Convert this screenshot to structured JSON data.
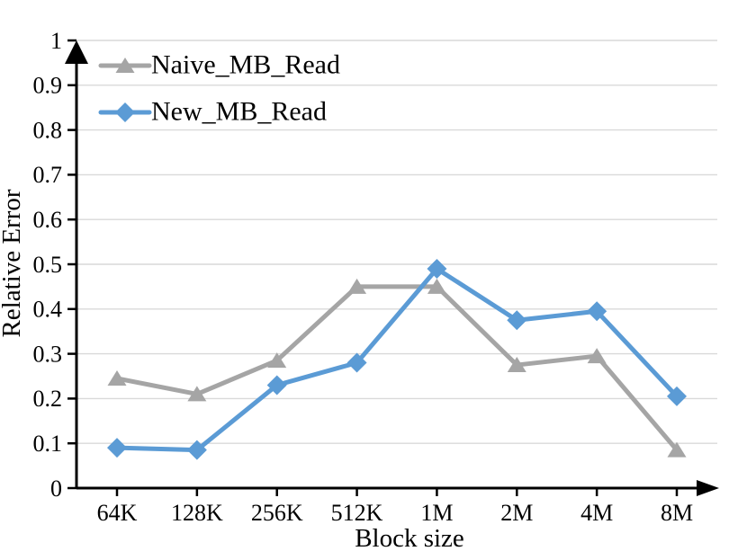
{
  "chart_data": {
    "type": "line",
    "title": "",
    "xlabel": "Block size",
    "ylabel": "Relative Error",
    "categories": [
      "64K",
      "128K",
      "256K",
      "512K",
      "1M",
      "2M",
      "4M",
      "8M"
    ],
    "series": [
      {
        "name": "Naive_MB_Read",
        "color": "#A5A5A5",
        "marker": "triangle",
        "values": [
          0.245,
          0.21,
          0.285,
          0.45,
          0.45,
          0.275,
          0.295,
          0.085
        ]
      },
      {
        "name": "New_MB_Read",
        "color": "#5B9BD5",
        "marker": "diamond",
        "values": [
          0.09,
          0.085,
          0.23,
          0.28,
          0.49,
          0.375,
          0.395,
          0.205
        ]
      }
    ],
    "ylim": [
      0,
      1
    ],
    "ytick_step": 0.1,
    "y_tick_labels": [
      "0",
      "0.1",
      "0.2",
      "0.3",
      "0.4",
      "0.5",
      "0.6",
      "0.7",
      "0.8",
      "0.9",
      "1"
    ],
    "grid": "horizontal-only",
    "gridline_color": "#D9D9D9",
    "axis_color": "#000000",
    "text_color": "#000000",
    "background": "#FFFFFF",
    "legend": {
      "position": "top-left-inside",
      "entries": [
        "Naive_MB_Read",
        "New_MB_Read"
      ]
    }
  }
}
